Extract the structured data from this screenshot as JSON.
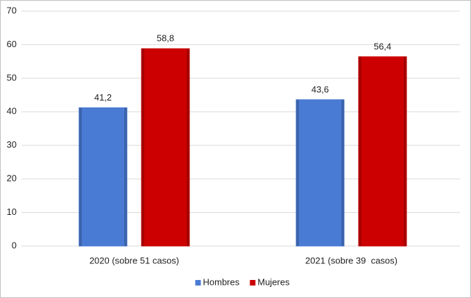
{
  "chart_data": {
    "type": "bar",
    "categories": [
      "2020 (sobre 51 casos)",
      "2021 (sobre 39  casos)"
    ],
    "series": [
      {
        "name": "Hombres",
        "color": "#4a7bd4",
        "values": [
          41.2,
          43.6
        ],
        "value_labels": [
          "41,2",
          "43,6"
        ]
      },
      {
        "name": "Mujeres",
        "color": "#cc0000",
        "values": [
          58.8,
          56.4
        ],
        "value_labels": [
          "58,8",
          "56,4"
        ]
      }
    ],
    "ylim": [
      0,
      70
    ],
    "yticks": [
      0,
      10,
      20,
      30,
      40,
      50,
      60,
      70
    ],
    "grid": true,
    "legend": "bottom"
  }
}
